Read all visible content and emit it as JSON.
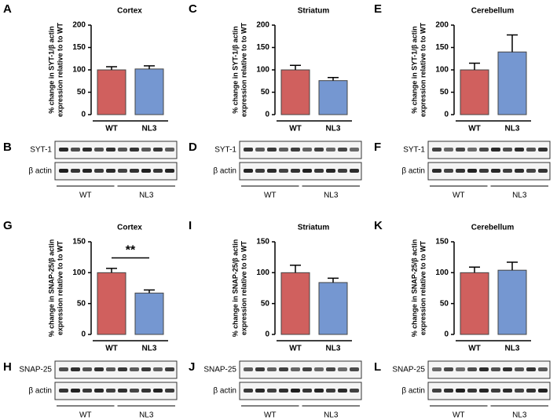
{
  "chart_data": [
    {
      "panel": "A",
      "type": "bar",
      "title": "Cortex",
      "ylabel": [
        "% change in SYT-1/β actin",
        "expression relative to to WT"
      ],
      "categories": [
        "WT",
        "NL3"
      ],
      "values": [
        100,
        102
      ],
      "errors": [
        7,
        7
      ],
      "colors": [
        "#d0605e",
        "#7597d1"
      ],
      "ylim": [
        0,
        200
      ],
      "yticks": [
        0,
        50,
        100,
        150,
        200
      ]
    },
    {
      "panel": "C",
      "type": "bar",
      "title": "Striatum",
      "ylabel": [
        "% change in SYT-1/β actin",
        "expression relative to to WT"
      ],
      "categories": [
        "WT",
        "NL3"
      ],
      "values": [
        100,
        76
      ],
      "errors": [
        10,
        7
      ],
      "colors": [
        "#d0605e",
        "#7597d1"
      ],
      "ylim": [
        0,
        200
      ],
      "yticks": [
        0,
        50,
        100,
        150,
        200
      ]
    },
    {
      "panel": "E",
      "type": "bar",
      "title": "Cerebellum",
      "ylabel": [
        "% change in SYT-1/β actin",
        "expression relative to to WT"
      ],
      "categories": [
        "WT",
        "NL3"
      ],
      "values": [
        100,
        140
      ],
      "errors": [
        15,
        38
      ],
      "colors": [
        "#d0605e",
        "#7597d1"
      ],
      "ylim": [
        0,
        200
      ],
      "yticks": [
        0,
        50,
        100,
        150,
        200
      ]
    },
    {
      "panel": "G",
      "type": "bar",
      "title": "Cortex",
      "ylabel": [
        "% change in SNAP-25/β actin",
        "expression relative to to WT"
      ],
      "categories": [
        "WT",
        "NL3"
      ],
      "values": [
        100,
        67
      ],
      "errors": [
        7,
        5
      ],
      "colors": [
        "#d0605e",
        "#7597d1"
      ],
      "ylim": [
        0,
        150
      ],
      "yticks": [
        0,
        50,
        100,
        150
      ],
      "annotation": "**"
    },
    {
      "panel": "I",
      "type": "bar",
      "title": "Striatum",
      "ylabel": [
        "% change in SNAP-25/β actin",
        "expression relative to to WT"
      ],
      "categories": [
        "WT",
        "NL3"
      ],
      "values": [
        100,
        84
      ],
      "errors": [
        12,
        7
      ],
      "colors": [
        "#d0605e",
        "#7597d1"
      ],
      "ylim": [
        0,
        150
      ],
      "yticks": [
        0,
        50,
        100,
        150
      ]
    },
    {
      "panel": "K",
      "type": "bar",
      "title": "Cerebellum",
      "ylabel": [
        "% change in SNAP-25/β actin",
        "expression relative to to WT"
      ],
      "categories": [
        "WT",
        "NL3"
      ],
      "values": [
        100,
        104
      ],
      "errors": [
        9,
        13
      ],
      "colors": [
        "#d0605e",
        "#7597d1"
      ],
      "ylim": [
        0,
        150
      ],
      "yticks": [
        0,
        50,
        100,
        150
      ]
    }
  ],
  "blots": [
    {
      "panel": "B",
      "rows": [
        "SYT-1",
        "β actin"
      ],
      "groups": [
        "WT",
        "NL3"
      ]
    },
    {
      "panel": "D",
      "rows": [
        "SYT-1",
        "β actin"
      ],
      "groups": [
        "WT",
        "NL3"
      ]
    },
    {
      "panel": "F",
      "rows": [
        "SYT-1",
        "β actin"
      ],
      "groups": [
        "WT",
        "NL3"
      ]
    },
    {
      "panel": "H",
      "rows": [
        "SNAP-25",
        "β actin"
      ],
      "groups": [
        "WT",
        "NL3"
      ]
    },
    {
      "panel": "J",
      "rows": [
        "SNAP-25",
        "β actin"
      ],
      "groups": [
        "WT",
        "NL3"
      ]
    },
    {
      "panel": "L",
      "rows": [
        "SNAP-25",
        "β actin"
      ],
      "groups": [
        "WT",
        "NL3"
      ]
    }
  ]
}
